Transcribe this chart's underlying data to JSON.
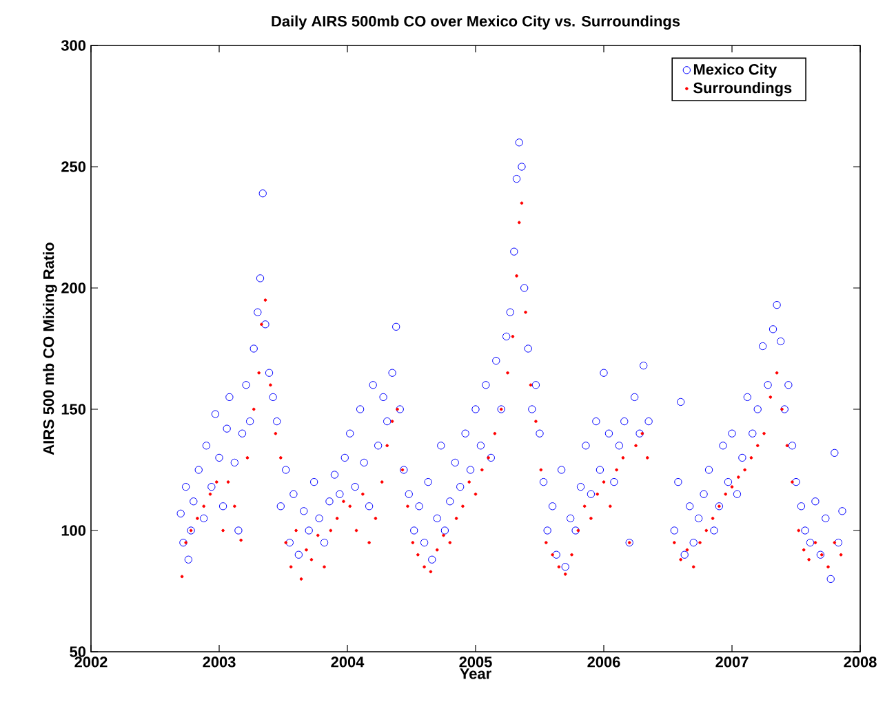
{
  "chart_data": {
    "type": "scatter",
    "title": "Daily AIRS 500mb CO over Mexico City vs. Surroundings",
    "xlabel": "Year",
    "ylabel": "AIRS 500 mb CO Mixing Ratio",
    "xlim": [
      2002,
      2008
    ],
    "xticks": [
      2002,
      2003,
      2004,
      2005,
      2006,
      2007,
      2008
    ],
    "ylim": [
      50,
      300
    ],
    "yticks": [
      50,
      100,
      150,
      200,
      250,
      300
    ],
    "grid": false,
    "legend": "top right",
    "marker": "circle",
    "series": [
      {
        "name": "Mexico City",
        "color": "#0000ff",
        "x": [
          2002.7,
          2002.72,
          2002.74,
          2002.76,
          2002.78,
          2002.8,
          2002.84,
          2002.88,
          2002.9,
          2002.94,
          2002.97,
          2003.0,
          2003.03,
          2003.06,
          2003.08,
          2003.12,
          2003.15,
          2003.18,
          2003.21,
          2003.24,
          2003.27,
          2003.3,
          2003.32,
          2003.34,
          2003.36,
          2003.39,
          2003.42,
          2003.45,
          2003.48,
          2003.52,
          2003.55,
          2003.58,
          2003.62,
          2003.66,
          2003.7,
          2003.74,
          2003.78,
          2003.82,
          2003.86,
          2003.9,
          2003.94,
          2003.98,
          2004.02,
          2004.06,
          2004.1,
          2004.13,
          2004.17,
          2004.2,
          2004.24,
          2004.28,
          2004.31,
          2004.35,
          2004.38,
          2004.41,
          2004.44,
          2004.48,
          2004.52,
          2004.56,
          2004.6,
          2004.63,
          2004.66,
          2004.7,
          2004.73,
          2004.76,
          2004.8,
          2004.84,
          2004.88,
          2004.92,
          2004.96,
          2005.0,
          2005.04,
          2005.08,
          2005.12,
          2005.16,
          2005.2,
          2005.24,
          2005.27,
          2005.3,
          2005.32,
          2005.34,
          2005.36,
          2005.38,
          2005.41,
          2005.44,
          2005.47,
          2005.5,
          2005.53,
          2005.56,
          2005.6,
          2005.63,
          2005.67,
          2005.7,
          2005.74,
          2005.78,
          2005.82,
          2005.86,
          2005.9,
          2005.94,
          2005.97,
          2006.0,
          2006.04,
          2006.08,
          2006.12,
          2006.16,
          2006.2,
          2006.24,
          2006.28,
          2006.31,
          2006.35,
          2006.55,
          2006.58,
          2006.6,
          2006.63,
          2006.67,
          2006.7,
          2006.74,
          2006.78,
          2006.82,
          2006.86,
          2006.9,
          2006.93,
          2006.97,
          2007.0,
          2007.04,
          2007.08,
          2007.12,
          2007.16,
          2007.2,
          2007.24,
          2007.28,
          2007.32,
          2007.35,
          2007.38,
          2007.41,
          2007.44,
          2007.47,
          2007.5,
          2007.54,
          2007.57,
          2007.61,
          2007.65,
          2007.69,
          2007.73,
          2007.77,
          2007.8,
          2007.83,
          2007.86
        ],
        "values": [
          107,
          95,
          118,
          88,
          100,
          112,
          125,
          105,
          135,
          118,
          148,
          130,
          110,
          142,
          155,
          128,
          100,
          140,
          160,
          145,
          175,
          190,
          204,
          239,
          185,
          165,
          155,
          145,
          110,
          125,
          95,
          115,
          90,
          108,
          100,
          120,
          105,
          95,
          112,
          123,
          115,
          130,
          140,
          118,
          150,
          128,
          110,
          160,
          135,
          155,
          145,
          165,
          184,
          150,
          125,
          115,
          100,
          110,
          95,
          120,
          88,
          105,
          135,
          100,
          112,
          128,
          118,
          140,
          125,
          150,
          135,
          160,
          130,
          170,
          150,
          180,
          190,
          215,
          245,
          260,
          250,
          200,
          175,
          150,
          160,
          140,
          120,
          100,
          110,
          90,
          125,
          85,
          105,
          100,
          118,
          135,
          115,
          145,
          125,
          165,
          140,
          120,
          135,
          145,
          95,
          155,
          140,
          168,
          145,
          100,
          120,
          153,
          90,
          110,
          95,
          105,
          115,
          125,
          100,
          110,
          135,
          120,
          140,
          115,
          130,
          155,
          140,
          150,
          176,
          160,
          183,
          193,
          178,
          150,
          160,
          135,
          120,
          110,
          100,
          95,
          112,
          90,
          105,
          80,
          132,
          95,
          108
        ]
      },
      {
        "name": "Surroundings",
        "color": "#ff0000",
        "x": [
          2002.71,
          2002.74,
          2002.78,
          2002.83,
          2002.88,
          2002.93,
          2002.98,
          2003.03,
          2003.07,
          2003.12,
          2003.17,
          2003.22,
          2003.27,
          2003.31,
          2003.33,
          2003.36,
          2003.4,
          2003.44,
          2003.48,
          2003.52,
          2003.56,
          2003.6,
          2003.64,
          2003.68,
          2003.72,
          2003.77,
          2003.82,
          2003.87,
          2003.92,
          2003.97,
          2004.02,
          2004.07,
          2004.12,
          2004.17,
          2004.22,
          2004.27,
          2004.31,
          2004.35,
          2004.39,
          2004.43,
          2004.47,
          2004.51,
          2004.55,
          2004.6,
          2004.65,
          2004.7,
          2004.75,
          2004.8,
          2004.85,
          2004.9,
          2004.95,
          2005.0,
          2005.05,
          2005.1,
          2005.15,
          2005.2,
          2005.25,
          2005.29,
          2005.32,
          2005.34,
          2005.36,
          2005.39,
          2005.43,
          2005.47,
          2005.51,
          2005.55,
          2005.6,
          2005.65,
          2005.7,
          2005.75,
          2005.8,
          2005.85,
          2005.9,
          2005.95,
          2006.0,
          2006.05,
          2006.1,
          2006.15,
          2006.2,
          2006.25,
          2006.3,
          2006.34,
          2006.55,
          2006.6,
          2006.65,
          2006.7,
          2006.75,
          2006.8,
          2006.85,
          2006.9,
          2006.95,
          2007.0,
          2007.05,
          2007.1,
          2007.15,
          2007.2,
          2007.25,
          2007.3,
          2007.35,
          2007.39,
          2007.43,
          2007.47,
          2007.52,
          2007.56,
          2007.6,
          2007.65,
          2007.7,
          2007.75,
          2007.8,
          2007.85
        ],
        "values": [
          81,
          95,
          100,
          105,
          110,
          115,
          120,
          100,
          120,
          110,
          96,
          130,
          150,
          165,
          185,
          195,
          160,
          140,
          130,
          95,
          85,
          100,
          80,
          92,
          88,
          98,
          85,
          100,
          105,
          112,
          110,
          100,
          115,
          95,
          105,
          120,
          135,
          145,
          150,
          125,
          110,
          95,
          90,
          85,
          83,
          92,
          98,
          95,
          105,
          110,
          120,
          115,
          125,
          130,
          140,
          150,
          165,
          180,
          205,
          227,
          235,
          190,
          160,
          145,
          125,
          95,
          90,
          85,
          82,
          90,
          100,
          110,
          105,
          115,
          120,
          110,
          125,
          130,
          95,
          135,
          140,
          130,
          95,
          88,
          92,
          85,
          95,
          100,
          105,
          110,
          115,
          118,
          122,
          125,
          130,
          135,
          140,
          155,
          165,
          150,
          135,
          120,
          100,
          92,
          88,
          95,
          90,
          85,
          95,
          90
        ]
      }
    ]
  }
}
